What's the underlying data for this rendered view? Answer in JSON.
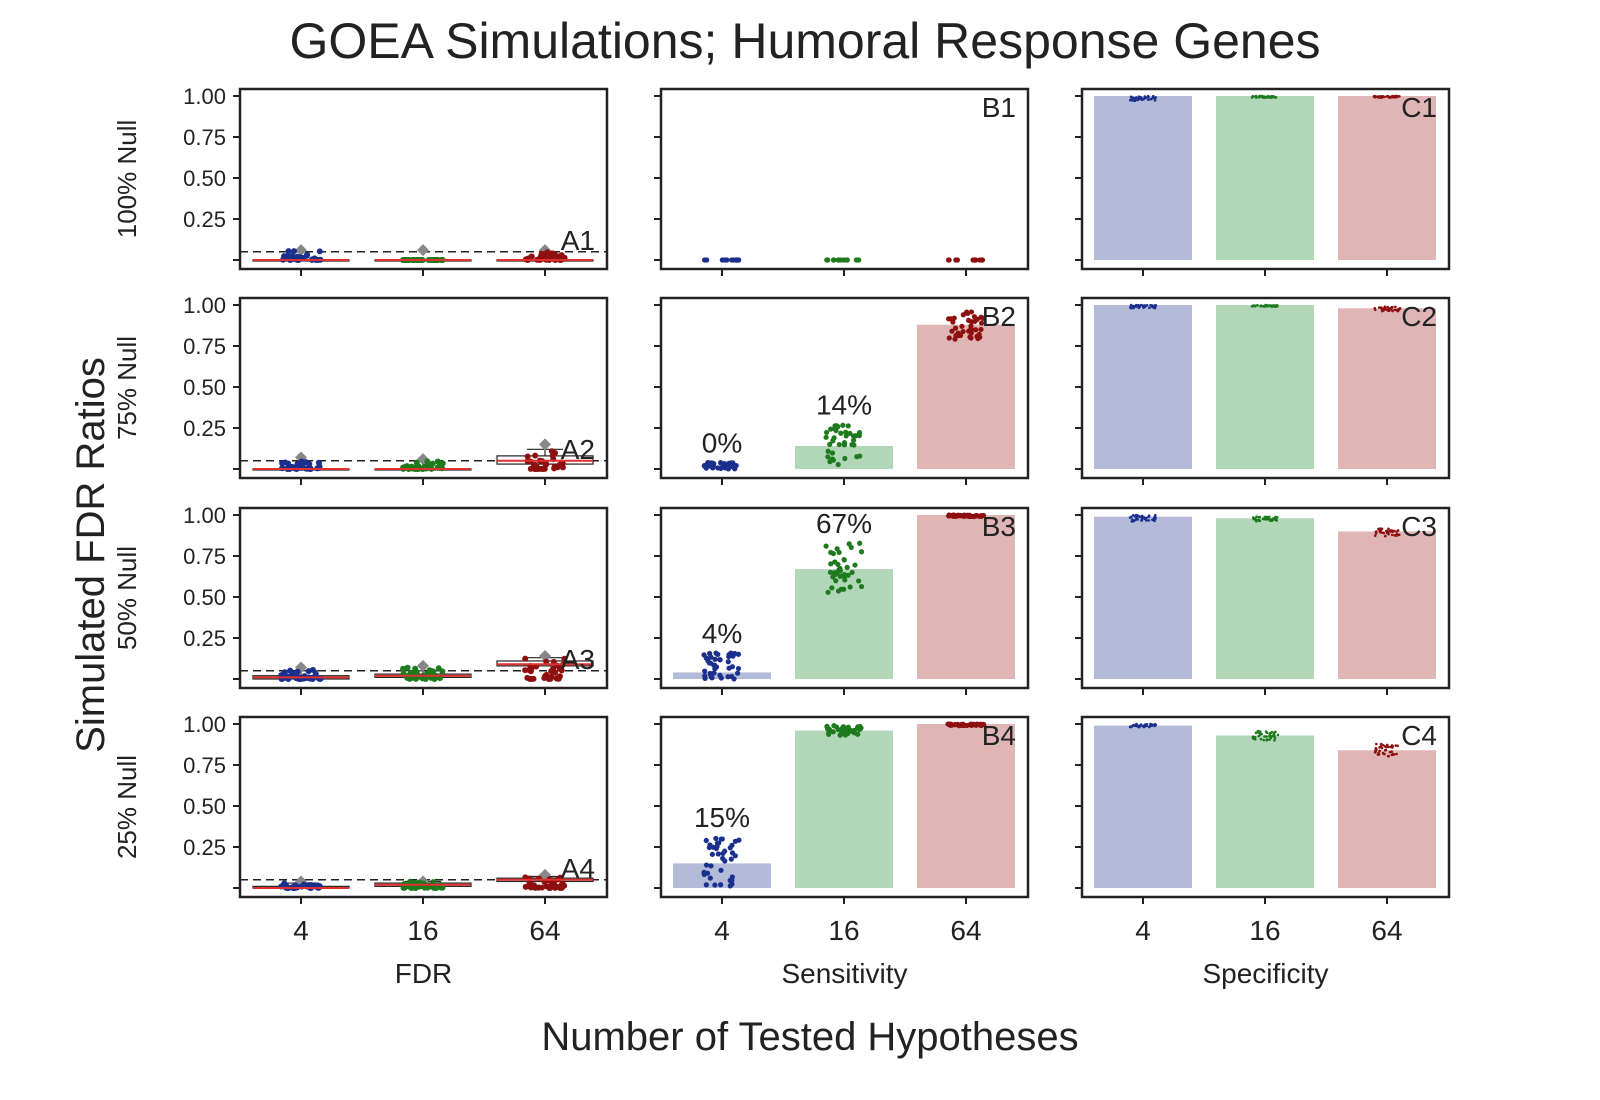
{
  "title": "GOEA Simulations; Humoral Response Genes",
  "ylabel": "Simulated FDR Ratios",
  "xlabel": "Number of Tested Hypotheses",
  "row_labels": [
    "100% Null",
    "75% Null",
    "50% Null",
    "25% Null"
  ],
  "column_labels": [
    "FDR",
    "Sensitivity",
    "Specificity"
  ],
  "colors": {
    "n4": "#1b2f8c",
    "n16": "#1d7a1d",
    "n64": "#8e0f0f",
    "bar4": "#b3bbd9",
    "bar16": "#b2d6b8",
    "bar64": "#dfb5b5",
    "median": "#e03030",
    "text": "#222222"
  },
  "chart_data": {
    "type": "bar",
    "layout": "4x3 grid",
    "categories": [
      "4",
      "16",
      "64"
    ],
    "y_ticks": [
      "1.00",
      "0.75",
      "0.50",
      "0.25"
    ],
    "ylim": [
      0,
      1.05
    ],
    "fdr_alpha_line": 0.05,
    "panels": [
      {
        "id": "A1",
        "row": "100% Null",
        "column": "FDR",
        "kind": "box",
        "median": [
          0.0,
          0.0,
          0.0
        ],
        "q1": [
          0.0,
          0.0,
          0.0
        ],
        "q3": [
          0.0,
          0.0,
          0.0
        ],
        "whisker_hi": [
          0.0,
          0.0,
          0.0
        ],
        "outlier_max": [
          0.06,
          0.06,
          0.06
        ],
        "point_max": [
          0.06,
          0.0,
          0.05
        ]
      },
      {
        "id": "A2",
        "row": "75% Null",
        "column": "FDR",
        "kind": "box",
        "median": [
          0.0,
          0.0,
          0.05
        ],
        "q1": [
          0.0,
          0.0,
          0.03
        ],
        "q3": [
          0.0,
          0.0,
          0.08
        ],
        "whisker_hi": [
          0.0,
          0.0,
          0.12
        ],
        "outlier_max": [
          0.07,
          0.06,
          0.15
        ],
        "point_max": [
          0.05,
          0.05,
          0.14
        ]
      },
      {
        "id": "A3",
        "row": "50% Null",
        "column": "FDR",
        "kind": "box",
        "median": [
          0.01,
          0.02,
          0.09
        ],
        "q1": [
          0.0,
          0.01,
          0.08
        ],
        "q3": [
          0.02,
          0.03,
          0.11
        ],
        "whisker_hi": [
          0.05,
          0.05,
          0.13
        ],
        "outlier_max": [
          0.07,
          0.08,
          0.14
        ],
        "point_max": [
          0.06,
          0.07,
          0.13
        ]
      },
      {
        "id": "A4",
        "row": "25% Null",
        "column": "FDR",
        "kind": "box",
        "median": [
          0.0,
          0.02,
          0.05
        ],
        "q1": [
          0.0,
          0.01,
          0.04
        ],
        "q3": [
          0.01,
          0.03,
          0.06
        ],
        "whisker_hi": [
          0.03,
          0.04,
          0.07
        ],
        "outlier_max": [
          0.04,
          0.04,
          0.08
        ],
        "point_max": [
          0.03,
          0.04,
          0.07
        ]
      },
      {
        "id": "B1",
        "row": "100% Null",
        "column": "Sensitivity",
        "kind": "bar",
        "values": [
          0.0,
          0.0,
          0.0
        ],
        "pct_labels": [
          "",
          "",
          ""
        ],
        "spread_lo": [
          0.0,
          0.0,
          0.0
        ],
        "spread_hi": [
          0.0,
          0.0,
          0.0
        ]
      },
      {
        "id": "B2",
        "row": "75% Null",
        "column": "Sensitivity",
        "kind": "bar",
        "values": [
          0.0,
          0.14,
          0.88
        ],
        "pct_labels": [
          "0%",
          "14%",
          ""
        ],
        "spread_lo": [
          0.0,
          0.02,
          0.79
        ],
        "spread_hi": [
          0.04,
          0.27,
          0.96
        ]
      },
      {
        "id": "B3",
        "row": "50% Null",
        "column": "Sensitivity",
        "kind": "bar",
        "values": [
          0.04,
          0.67,
          1.0
        ],
        "pct_labels": [
          "4%",
          "67%",
          ""
        ],
        "spread_lo": [
          0.0,
          0.5,
          0.99
        ],
        "spread_hi": [
          0.16,
          0.83,
          1.0
        ]
      },
      {
        "id": "B4",
        "row": "25% Null",
        "column": "Sensitivity",
        "kind": "bar",
        "values": [
          0.15,
          0.96,
          1.0
        ],
        "pct_labels": [
          "15%",
          "",
          ""
        ],
        "spread_lo": [
          0.0,
          0.93,
          0.99
        ],
        "spread_hi": [
          0.31,
          0.99,
          1.0
        ]
      },
      {
        "id": "C1",
        "row": "100% Null",
        "column": "Specificity",
        "kind": "bar",
        "values": [
          1.0,
          1.0,
          1.0
        ],
        "pct_labels": [
          "",
          "",
          ""
        ],
        "spread_lo": [
          0.97,
          0.99,
          0.99
        ],
        "spread_hi": [
          1.0,
          1.0,
          1.0
        ]
      },
      {
        "id": "C2",
        "row": "75% Null",
        "column": "Specificity",
        "kind": "bar",
        "values": [
          1.0,
          1.0,
          0.98
        ],
        "pct_labels": [
          "",
          "",
          ""
        ],
        "spread_lo": [
          0.98,
          0.99,
          0.96
        ],
        "spread_hi": [
          1.0,
          1.0,
          0.99
        ]
      },
      {
        "id": "C3",
        "row": "50% Null",
        "column": "Specificity",
        "kind": "bar",
        "values": [
          0.99,
          0.98,
          0.9
        ],
        "pct_labels": [
          "",
          "",
          ""
        ],
        "spread_lo": [
          0.96,
          0.96,
          0.87
        ],
        "spread_hi": [
          1.0,
          0.99,
          0.92
        ]
      },
      {
        "id": "C4",
        "row": "25% Null",
        "column": "Specificity",
        "kind": "bar",
        "values": [
          0.99,
          0.93,
          0.84
        ],
        "pct_labels": [
          "",
          "",
          ""
        ],
        "spread_lo": [
          0.98,
          0.9,
          0.8
        ],
        "spread_hi": [
          1.0,
          0.96,
          0.88
        ]
      }
    ]
  }
}
